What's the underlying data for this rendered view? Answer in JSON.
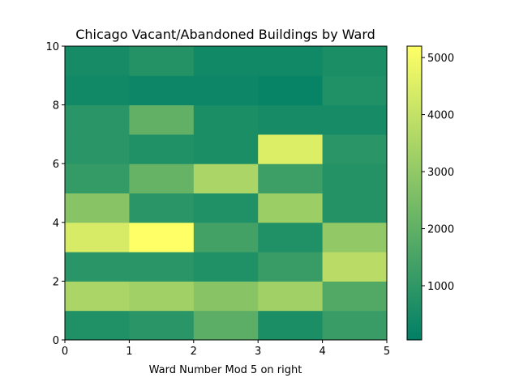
{
  "chart_data": {
    "type": "heatmap",
    "title": "Chicago Vacant/Abandoned Buildings by Ward",
    "xlabel": "Ward Number Mod 5 on right",
    "ylabel": "",
    "xlim": [
      0,
      5
    ],
    "ylim": [
      0,
      10
    ],
    "x_edges": [
      0,
      1,
      2,
      3,
      4,
      5
    ],
    "y_edges": [
      0,
      1,
      2,
      3,
      4,
      5,
      6,
      7,
      8,
      9,
      10
    ],
    "x_ticks": [
      "0",
      "1",
      "2",
      "3",
      "4",
      "5"
    ],
    "y_ticks": [
      "0",
      "2",
      "4",
      "6",
      "8",
      "10"
    ],
    "values": [
      [
        700,
        900,
        1900,
        600,
        1200
      ],
      [
        3500,
        3300,
        2800,
        3300,
        1700
      ],
      [
        900,
        900,
        700,
        1200,
        3800
      ],
      [
        4400,
        5200,
        1400,
        700,
        3000
      ],
      [
        2800,
        900,
        700,
        3200,
        800
      ],
      [
        1100,
        2100,
        3500,
        1300,
        800
      ],
      [
        900,
        700,
        600,
        4500,
        900
      ],
      [
        900,
        2000,
        600,
        500,
        500
      ],
      [
        400,
        300,
        300,
        200,
        700
      ],
      [
        500,
        800,
        400,
        400,
        600
      ]
    ],
    "colormap": "summer",
    "colormap_colors": [
      "#008066",
      "#ffff66"
    ],
    "colorbar": {
      "min": 50,
      "max": 5200,
      "ticks": [
        1000,
        2000,
        3000,
        4000,
        5000
      ],
      "tick_labels": [
        "1000",
        "2000",
        "3000",
        "4000",
        "5000"
      ]
    },
    "grid": false
  }
}
